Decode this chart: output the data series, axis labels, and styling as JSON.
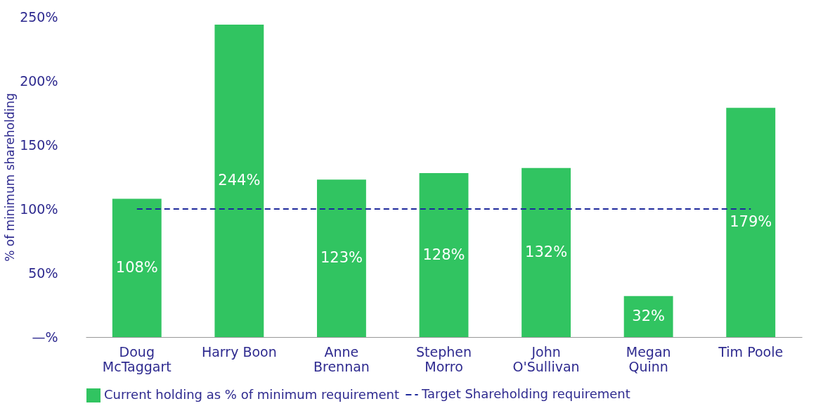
{
  "chart_data": {
    "type": "bar",
    "ylabel": "% of minimum shareholding",
    "categories": [
      "Doug\nMcTaggart",
      "Harry Boon",
      "Anne\nBrennan",
      "Stephen\nMorro",
      "John\nO'Sullivan",
      "Megan\nQuinn",
      "Tim Poole"
    ],
    "series": [
      {
        "name": "Current holding as % of minimum requirement",
        "color": "#31c461",
        "values": [
          108,
          244,
          123,
          128,
          132,
          32,
          179
        ],
        "value_labels": [
          "108%",
          "244%",
          "123%",
          "128%",
          "132%",
          "32%",
          "179%"
        ]
      }
    ],
    "ylim": [
      0,
      250
    ],
    "yticks": [
      {
        "value": 0,
        "label": "—%"
      },
      {
        "value": 50,
        "label": "50%"
      },
      {
        "value": 100,
        "label": "100%"
      },
      {
        "value": 150,
        "label": "150%"
      },
      {
        "value": 200,
        "label": "200%"
      },
      {
        "value": 250,
        "label": "250%"
      }
    ],
    "ref_lines": [
      {
        "axis": "y",
        "value": 100,
        "label": "Target Shareholding requirement",
        "color": "#1f2a9c",
        "line_style": "dashed"
      }
    ],
    "grid": false,
    "legend": "bottom"
  }
}
